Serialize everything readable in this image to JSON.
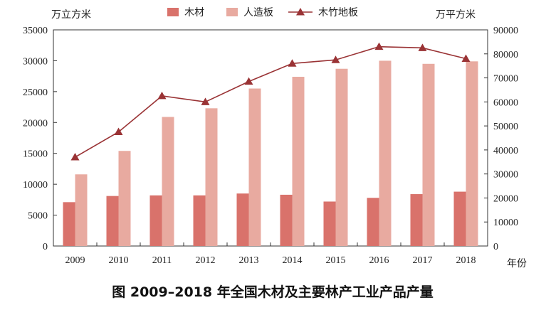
{
  "chart_data": {
    "type": "bar",
    "caption": "图  2009–2018 年全国木材及主要林产工业产品产量",
    "left_axis": {
      "unit_label": "万立方米",
      "ylim": [
        0,
        35000
      ],
      "ticks": [
        "0",
        "5000",
        "10000",
        "15000",
        "20000",
        "25000",
        "30000",
        "35000"
      ]
    },
    "right_axis": {
      "unit_label": "万平方米",
      "ylim": [
        0,
        90000
      ],
      "ticks": [
        "0",
        "10000",
        "20000",
        "30000",
        "40000",
        "50000",
        "60000",
        "70000",
        "80000",
        "90000"
      ]
    },
    "x_unit_label": "年份",
    "categories": [
      "2009",
      "2010",
      "2011",
      "2012",
      "2013",
      "2014",
      "2015",
      "2016",
      "2017",
      "2018"
    ],
    "series": [
      {
        "name": "木材",
        "type": "bar",
        "axis": "left",
        "color": "#d9726b",
        "values": [
          7100,
          8100,
          8200,
          8200,
          8500,
          8300,
          7200,
          7800,
          8400,
          8800
        ]
      },
      {
        "name": "人造板",
        "type": "bar",
        "axis": "left",
        "color": "#e8aaa0",
        "values": [
          11600,
          15400,
          20900,
          22300,
          25500,
          27400,
          28700,
          30000,
          29500,
          29900
        ]
      },
      {
        "name": "木竹地板",
        "type": "line",
        "axis": "right",
        "color": "#9a3335",
        "values": [
          37000,
          47500,
          62500,
          60000,
          68500,
          76000,
          77500,
          83000,
          82500,
          78000
        ]
      }
    ]
  }
}
